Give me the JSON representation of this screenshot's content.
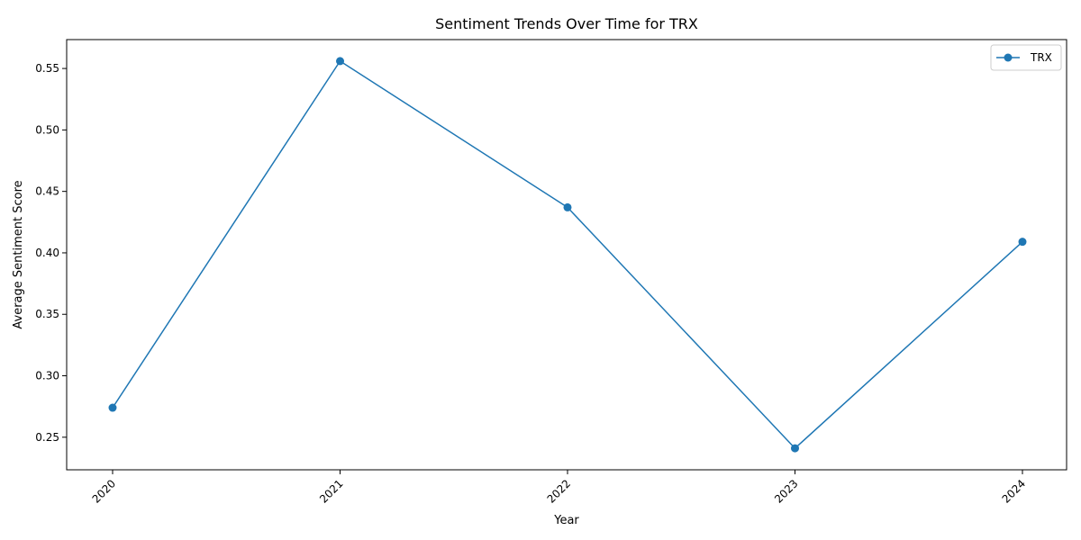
{
  "chart_data": {
    "type": "line",
    "title": "Sentiment Trends Over Time for TRX",
    "xlabel": "Year",
    "ylabel": "Average Sentiment Score",
    "categories": [
      "2020",
      "2021",
      "2022",
      "2023",
      "2024"
    ],
    "series": [
      {
        "name": "TRX",
        "values": [
          0.274,
          0.556,
          0.437,
          0.241,
          0.409
        ],
        "color": "#1f77b4",
        "marker": "circle"
      }
    ],
    "ylim": [
      0.2235,
      0.5735
    ],
    "yticks": [
      "0.25",
      "0.30",
      "0.35",
      "0.40",
      "0.45",
      "0.50",
      "0.55"
    ],
    "xtick_rotation": -45,
    "grid": false,
    "legend": "top-right"
  }
}
